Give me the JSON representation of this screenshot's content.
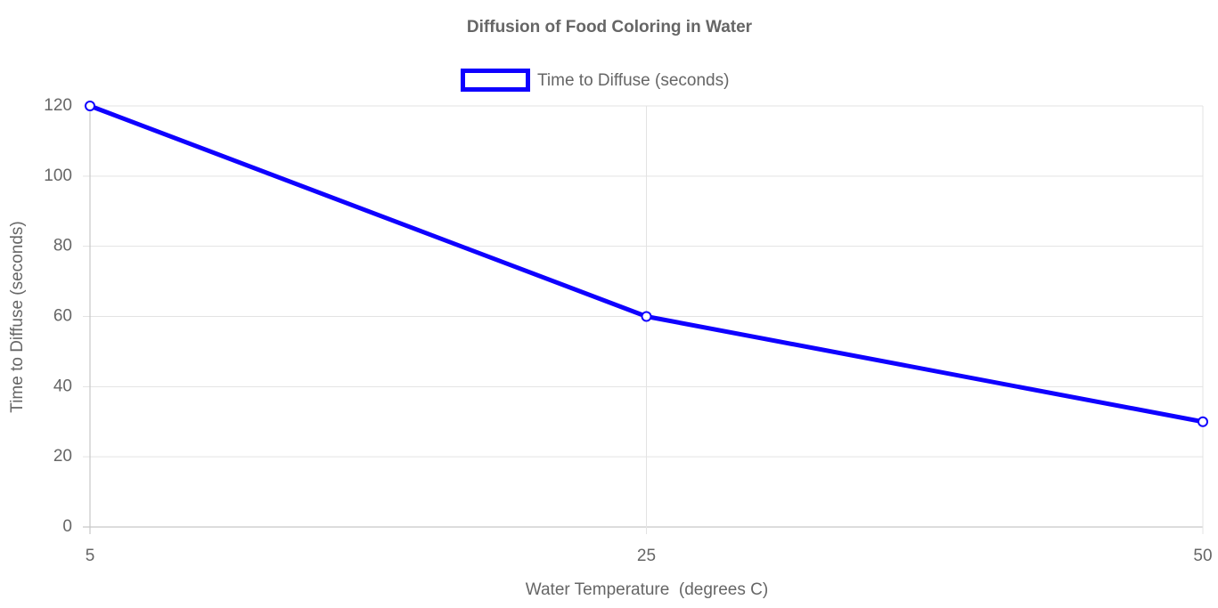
{
  "chart_data": {
    "type": "line",
    "title": "Diffusion of Food Coloring in Water",
    "x_label": "Water Temperature  (degrees C)",
    "y_label": "Time to Diffuse (seconds)",
    "categories": [
      "5",
      "25",
      "50"
    ],
    "series": [
      {
        "name": "Time to Diffuse (seconds)",
        "color": "#0f00ff",
        "values": [
          120,
          60,
          30
        ]
      }
    ],
    "ylim": [
      0,
      120
    ],
    "yticks": [
      0,
      20,
      40,
      60,
      80,
      100,
      120
    ],
    "grid": true,
    "legend": "top"
  }
}
